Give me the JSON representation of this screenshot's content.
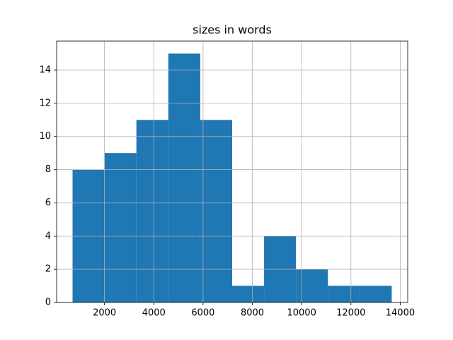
{
  "chart_data": {
    "type": "histogram",
    "title": "sizes in words",
    "bins": [
      705,
      2000,
      3295,
      4590,
      5885,
      7180,
      8475,
      9770,
      11065,
      12360,
      13655
    ],
    "values": [
      8,
      9,
      11,
      15,
      11,
      1,
      4,
      2,
      1,
      1
    ],
    "color": "#1f77b4",
    "xlim": [
      58,
      14303
    ],
    "xticks": [
      2000,
      4000,
      6000,
      8000,
      10000,
      12000,
      14000
    ],
    "ylim": [
      0,
      15.75
    ],
    "yticks": [
      0,
      2,
      4,
      6,
      8,
      10,
      12,
      14
    ],
    "grid": true
  }
}
